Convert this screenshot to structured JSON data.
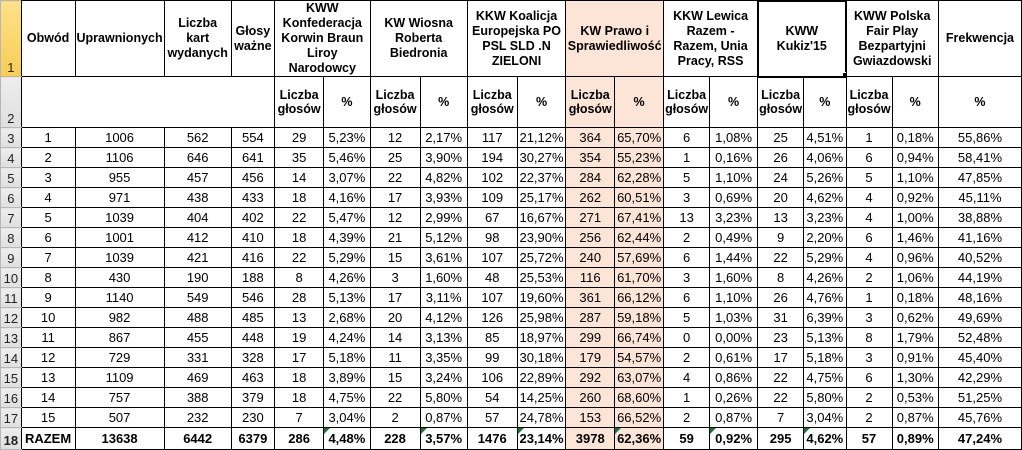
{
  "row_headers": [
    "1",
    "2",
    "3",
    "4",
    "5",
    "6",
    "7",
    "8",
    "9",
    "10",
    "11",
    "12",
    "13",
    "14",
    "15",
    "16",
    "17",
    "18"
  ],
  "columns": {
    "obwod": "Obwód",
    "uprawnionych": "Uprawnionych",
    "liczba_kart": "Liczba kart wydanych",
    "glosy_wazne": "Głosy ważne",
    "frekwencja": "Frekwencja",
    "votes_label": "Liczba głosów",
    "pct_label": "%"
  },
  "parties": [
    {
      "name": "KWW Konfederacja Korwin Braun Liroy Narodowcy",
      "highlighted": false,
      "selected": false
    },
    {
      "name": "KW Wiosna Roberta Biedronia",
      "highlighted": false,
      "selected": false
    },
    {
      "name": "KKW Koalicja Europejska PO PSL SLD .N ZIELONI",
      "highlighted": false,
      "selected": false
    },
    {
      "name": "KW Prawo i Sprawiedliwość",
      "highlighted": true,
      "selected": false
    },
    {
      "name": "KKW Lewica Razem - Razem, Unia Pracy, RSS",
      "highlighted": false,
      "selected": false
    },
    {
      "name": "KWW Kukiz'15",
      "highlighted": false,
      "selected": true
    },
    {
      "name": "KWW Polska Fair Play Bezpartyjni Gwiazdowski",
      "highlighted": false,
      "selected": false
    }
  ],
  "rows": [
    [
      "1",
      "1006",
      "562",
      "554",
      "29",
      "5,23%",
      "12",
      "2,17%",
      "117",
      "21,12%",
      "364",
      "65,70%",
      "6",
      "1,08%",
      "25",
      "4,51%",
      "1",
      "0,18%",
      "55,86%"
    ],
    [
      "2",
      "1106",
      "646",
      "641",
      "35",
      "5,46%",
      "25",
      "3,90%",
      "194",
      "30,27%",
      "354",
      "55,23%",
      "1",
      "0,16%",
      "26",
      "4,06%",
      "6",
      "0,94%",
      "58,41%"
    ],
    [
      "3",
      "955",
      "457",
      "456",
      "14",
      "3,07%",
      "22",
      "4,82%",
      "102",
      "22,37%",
      "284",
      "62,28%",
      "5",
      "1,10%",
      "24",
      "5,26%",
      "5",
      "1,10%",
      "47,85%"
    ],
    [
      "4",
      "971",
      "438",
      "433",
      "18",
      "4,16%",
      "17",
      "3,93%",
      "109",
      "25,17%",
      "262",
      "60,51%",
      "3",
      "0,69%",
      "20",
      "4,62%",
      "4",
      "0,92%",
      "45,11%"
    ],
    [
      "5",
      "1039",
      "404",
      "402",
      "22",
      "5,47%",
      "12",
      "2,99%",
      "67",
      "16,67%",
      "271",
      "67,41%",
      "13",
      "3,23%",
      "13",
      "3,23%",
      "4",
      "1,00%",
      "38,88%"
    ],
    [
      "6",
      "1001",
      "412",
      "410",
      "18",
      "4,39%",
      "21",
      "5,12%",
      "98",
      "23,90%",
      "256",
      "62,44%",
      "2",
      "0,49%",
      "9",
      "2,20%",
      "6",
      "1,46%",
      "41,16%"
    ],
    [
      "7",
      "1039",
      "421",
      "416",
      "22",
      "5,29%",
      "15",
      "3,61%",
      "107",
      "25,72%",
      "240",
      "57,69%",
      "6",
      "1,44%",
      "22",
      "5,29%",
      "4",
      "0,96%",
      "40,52%"
    ],
    [
      "8",
      "430",
      "190",
      "188",
      "8",
      "4,26%",
      "3",
      "1,60%",
      "48",
      "25,53%",
      "116",
      "61,70%",
      "3",
      "1,60%",
      "8",
      "4,26%",
      "2",
      "1,06%",
      "44,19%"
    ],
    [
      "9",
      "1140",
      "549",
      "546",
      "28",
      "5,13%",
      "17",
      "3,11%",
      "107",
      "19,60%",
      "361",
      "66,12%",
      "6",
      "1,10%",
      "26",
      "4,76%",
      "1",
      "0,18%",
      "48,16%"
    ],
    [
      "10",
      "982",
      "488",
      "485",
      "13",
      "2,68%",
      "20",
      "4,12%",
      "126",
      "25,98%",
      "287",
      "59,18%",
      "5",
      "1,03%",
      "31",
      "6,39%",
      "3",
      "0,62%",
      "49,69%"
    ],
    [
      "11",
      "867",
      "455",
      "448",
      "19",
      "4,24%",
      "14",
      "3,13%",
      "85",
      "18,97%",
      "299",
      "66,74%",
      "0",
      "0,00%",
      "23",
      "5,13%",
      "8",
      "1,79%",
      "52,48%"
    ],
    [
      "12",
      "729",
      "331",
      "328",
      "17",
      "5,18%",
      "11",
      "3,35%",
      "99",
      "30,18%",
      "179",
      "54,57%",
      "2",
      "0,61%",
      "17",
      "5,18%",
      "3",
      "0,91%",
      "45,40%"
    ],
    [
      "13",
      "1109",
      "469",
      "463",
      "18",
      "3,89%",
      "15",
      "3,24%",
      "106",
      "22,89%",
      "292",
      "63,07%",
      "4",
      "0,86%",
      "22",
      "4,75%",
      "6",
      "1,30%",
      "42,29%"
    ],
    [
      "14",
      "757",
      "388",
      "379",
      "18",
      "4,75%",
      "22",
      "5,80%",
      "54",
      "14,25%",
      "260",
      "68,60%",
      "1",
      "0,26%",
      "22",
      "5,80%",
      "2",
      "0,53%",
      "51,25%"
    ],
    [
      "15",
      "507",
      "232",
      "230",
      "7",
      "3,04%",
      "2",
      "0,87%",
      "57",
      "24,78%",
      "153",
      "66,52%",
      "2",
      "0,87%",
      "7",
      "3,04%",
      "2",
      "0,87%",
      "45,76%"
    ]
  ],
  "total_row": [
    "RAZEM",
    "13638",
    "6442",
    "6379",
    "286",
    "4,48%",
    "228",
    "3,57%",
    "1476",
    "23,14%",
    "3978",
    "62,36%",
    "59",
    "0,92%",
    "295",
    "4,62%",
    "57",
    "0,89%",
    "47,24%"
  ],
  "total_error_cols": [
    5,
    7,
    9,
    11,
    13,
    15
  ],
  "highlight_cols": [
    10,
    11
  ],
  "colors": {
    "pis_highlight": "#FCE4D6",
    "selected_row_header": "#F8CD55",
    "row_header_bg": "#E7E7E7",
    "grid_border": "#000000",
    "error_indicator_green": "#1E7145"
  }
}
